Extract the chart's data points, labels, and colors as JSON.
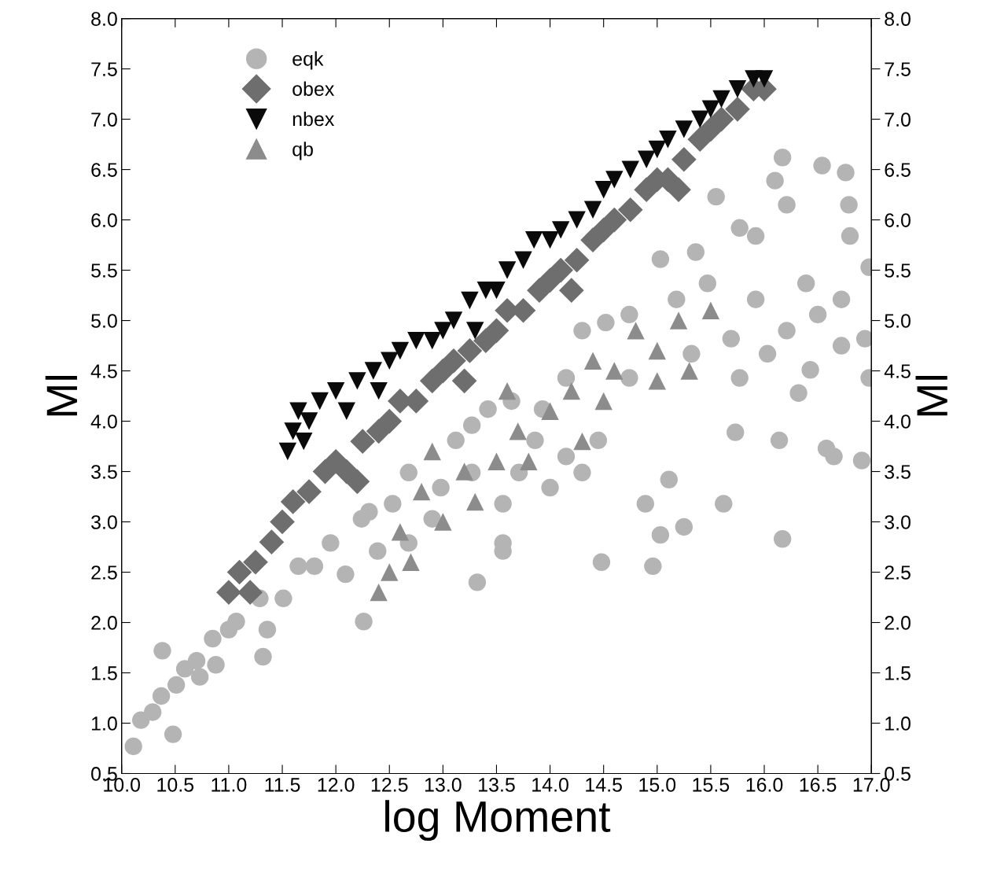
{
  "chart_data": {
    "type": "scatter",
    "xlabel": "log Moment",
    "ylabel": "Ml",
    "y2label": "Ml",
    "xlim": [
      10.0,
      17.0
    ],
    "xticks": [
      {
        "value": 10.0,
        "label": "10.0"
      },
      {
        "value": 10.5,
        "label": "10.5"
      },
      {
        "value": 11.0,
        "label": "11.0"
      },
      {
        "value": 11.5,
        "label": "11.5"
      },
      {
        "value": 12.0,
        "label": "12.0"
      },
      {
        "value": 12.5,
        "label": "12.5"
      },
      {
        "value": 13.0,
        "label": "13.0"
      },
      {
        "value": 13.5,
        "label": "13.5"
      },
      {
        "value": 14.0,
        "label": "14.0"
      },
      {
        "value": 14.5,
        "label": "14.5"
      },
      {
        "value": 15.0,
        "label": "15.0"
      },
      {
        "value": 15.5,
        "label": "15.5"
      },
      {
        "value": 16.0,
        "label": "16.0"
      },
      {
        "value": 16.5,
        "label": "16.5"
      },
      {
        "value": 17.0,
        "label": "17.0"
      }
    ],
    "ylim": [
      0.5,
      8.0
    ],
    "yticks": [
      0.5,
      {
        "value": 1.0,
        "label": "1.0"
      },
      1.5,
      {
        "value": 2.0,
        "label": "2.0"
      },
      2.5,
      {
        "value": 3.0,
        "label": "3.0"
      },
      3.5,
      {
        "value": 4.0,
        "label": "4.0"
      },
      4.5,
      {
        "value": 5.0,
        "label": "5.0"
      },
      5.5,
      {
        "value": 6.0,
        "label": "6.0"
      },
      6.5,
      {
        "value": 7.0,
        "label": "7.0"
      },
      7.5,
      {
        "value": 8.0,
        "label": "8.0"
      }
    ],
    "y2lim": [
      0.5,
      8.0
    ],
    "y2ticks": [
      0.5,
      {
        "value": 1.0,
        "label": "1.0"
      },
      1.5,
      {
        "value": 2.0,
        "label": "2.0"
      },
      2.5,
      {
        "value": 3.0,
        "label": "3.0"
      },
      3.5,
      {
        "value": 4.0,
        "label": "4.0"
      },
      4.5,
      {
        "value": 5.0,
        "label": "5.0"
      },
      5.5,
      {
        "value": 6.0,
        "label": "6.0"
      },
      6.5,
      {
        "value": 7.0,
        "label": "7.0"
      },
      7.5,
      {
        "value": 8.0,
        "label": "8.0"
      }
    ],
    "grid": false,
    "legend": "top left",
    "series": [
      {
        "name": "eqk",
        "color": "#b4b4b4",
        "marker": "circle",
        "x": [
          10.11,
          10.18,
          10.38,
          10.48,
          10.37,
          10.59,
          10.73,
          10.88,
          10.85,
          11.07,
          11.32,
          11.29,
          11.65,
          12.09,
          12.26,
          12.31,
          12.68,
          12.9,
          13.32,
          13.56,
          13.12,
          13.42,
          13.86,
          14.15,
          14.3,
          14.52,
          14.48,
          14.74,
          14.96,
          15.03,
          15.11,
          15.03,
          15.25,
          15.36,
          15.55,
          15.62,
          15.73,
          15.77,
          15.92,
          16.1,
          16.17,
          16.17,
          16.21,
          16.14,
          16.54,
          16.76,
          16.79,
          16.58,
          16.65,
          16.91,
          16.98,
          16.98,
          16.8,
          16.72,
          16.5,
          16.21,
          15.92,
          15.69,
          15.47,
          15.32,
          15.18,
          14.74,
          14.45,
          14.15,
          14.0,
          13.71,
          13.56,
          13.27,
          12.98,
          12.68,
          12.53,
          12.39,
          12.24,
          11.95,
          11.8,
          11.51,
          11.36,
          11.0,
          10.7,
          10.51,
          10.29,
          16.94,
          16.72,
          16.43,
          16.03,
          16.39,
          16.32,
          15.77,
          14.89,
          14.3,
          13.93,
          13.64,
          13.27,
          13.56
        ],
        "values": [
          0.77,
          1.03,
          1.72,
          0.89,
          1.27,
          1.54,
          1.46,
          1.58,
          1.84,
          2.01,
          1.66,
          2.24,
          2.56,
          2.48,
          2.01,
          3.1,
          2.79,
          3.03,
          2.4,
          2.79,
          3.81,
          4.12,
          3.81,
          4.43,
          4.9,
          4.98,
          2.6,
          5.06,
          2.56,
          2.87,
          3.42,
          5.61,
          2.95,
          5.68,
          6.23,
          3.18,
          3.89,
          5.92,
          5.84,
          6.39,
          2.83,
          6.62,
          6.15,
          3.81,
          6.54,
          6.47,
          6.15,
          3.73,
          3.65,
          3.61,
          4.43,
          5.53,
          5.84,
          5.21,
          5.06,
          4.9,
          5.21,
          4.82,
          5.37,
          4.67,
          5.21,
          4.43,
          3.81,
          3.65,
          3.34,
          3.49,
          3.18,
          3.49,
          3.34,
          3.49,
          3.18,
          2.71,
          3.03,
          2.79,
          2.56,
          2.24,
          1.93,
          1.93,
          1.62,
          1.38,
          1.11,
          4.82,
          4.75,
          4.51,
          4.67,
          5.37,
          4.28,
          4.43,
          3.18,
          3.49,
          4.12,
          4.2,
          3.96,
          2.71
        ]
      },
      {
        "name": "obex",
        "color": "#6e6e6e",
        "marker": "diamond",
        "x": [
          11.0,
          11.1,
          11.25,
          11.4,
          11.5,
          11.6,
          11.75,
          11.9,
          12.0,
          12.1,
          12.25,
          12.4,
          12.5,
          12.6,
          12.75,
          12.9,
          13.0,
          13.1,
          13.25,
          13.4,
          13.5,
          13.6,
          13.75,
          13.9,
          14.0,
          14.1,
          14.25,
          14.4,
          14.5,
          14.6,
          14.75,
          14.9,
          15.0,
          15.1,
          15.25,
          15.4,
          15.5,
          15.6,
          15.75,
          15.9,
          16.0,
          11.2,
          12.2,
          13.2,
          14.2,
          15.2
        ],
        "values": [
          2.3,
          2.5,
          2.6,
          2.8,
          3.0,
          3.2,
          3.3,
          3.5,
          3.6,
          3.5,
          3.8,
          3.9,
          4.0,
          4.2,
          4.2,
          4.4,
          4.5,
          4.6,
          4.7,
          4.8,
          4.9,
          5.1,
          5.1,
          5.3,
          5.4,
          5.5,
          5.6,
          5.8,
          5.9,
          6.0,
          6.1,
          6.3,
          6.4,
          6.4,
          6.6,
          6.8,
          6.9,
          7.0,
          7.1,
          7.3,
          7.3,
          2.3,
          3.4,
          4.4,
          5.3,
          6.3
        ]
      },
      {
        "name": "nbex",
        "color": "#0a0a0a",
        "marker": "triangle_down",
        "x": [
          11.55,
          11.6,
          11.65,
          11.75,
          11.85,
          12.0,
          12.1,
          12.2,
          12.35,
          12.5,
          12.6,
          12.75,
          12.9,
          13.0,
          13.1,
          13.25,
          13.4,
          13.5,
          13.6,
          13.75,
          13.85,
          14.0,
          14.1,
          14.25,
          14.4,
          14.5,
          14.6,
          14.75,
          14.9,
          15.0,
          15.1,
          15.25,
          15.4,
          15.5,
          15.6,
          15.75,
          15.9,
          16.0,
          11.7,
          12.4,
          13.3
        ],
        "values": [
          3.7,
          3.9,
          4.1,
          4.0,
          4.2,
          4.3,
          4.1,
          4.4,
          4.5,
          4.6,
          4.7,
          4.8,
          4.8,
          4.9,
          5.0,
          5.2,
          5.3,
          5.3,
          5.5,
          5.6,
          5.8,
          5.8,
          5.9,
          6.0,
          6.1,
          6.3,
          6.4,
          6.5,
          6.6,
          6.7,
          6.8,
          6.9,
          7.0,
          7.1,
          7.2,
          7.3,
          7.4,
          7.4,
          3.8,
          4.3,
          4.9
        ]
      },
      {
        "name": "qb",
        "color": "#8c8c8c",
        "marker": "triangle",
        "x": [
          12.5,
          12.6,
          12.8,
          13.0,
          13.2,
          13.5,
          13.7,
          14.0,
          14.2,
          14.4,
          14.6,
          14.8,
          15.0,
          15.2,
          15.3,
          15.5,
          12.9,
          13.3,
          13.8,
          14.3,
          12.4,
          12.7,
          15.0,
          14.5,
          13.6
        ],
        "values": [
          2.5,
          2.9,
          3.3,
          3.0,
          3.5,
          3.6,
          3.9,
          4.1,
          4.3,
          4.6,
          4.5,
          4.9,
          4.7,
          5.0,
          4.5,
          5.1,
          3.7,
          3.2,
          3.6,
          3.8,
          2.3,
          2.6,
          4.4,
          4.2,
          4.3
        ]
      }
    ]
  }
}
